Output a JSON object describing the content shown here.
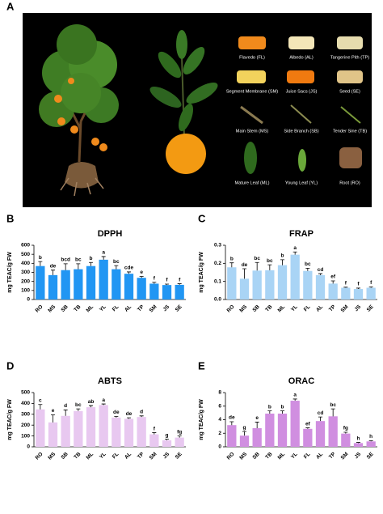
{
  "figure": {
    "panel_a_label": "A",
    "tissues": [
      "Flavedo (FL)",
      "Albedo (AL)",
      "Tangerine Pith (TP)",
      "Segment Membrane (SM)",
      "Juice Sacs (JS)",
      "Seed (SE)",
      "Main Stem (MS)",
      "Side Branch (SB)",
      "Tender Sine (TB)",
      "Mature Leaf (ML)",
      "Young Leaf (YL)",
      "Root (RO)"
    ]
  },
  "chart_data": [
    {
      "type": "bar",
      "panel_label": "B",
      "title": "DPPH",
      "y_label": "mg TEAC/g FW",
      "color": "#2196f3",
      "categories": [
        "RO",
        "MS",
        "SB",
        "TB",
        "ML",
        "YL",
        "FL",
        "AL",
        "TP",
        "SM",
        "JS",
        "SE"
      ],
      "values": [
        370,
        270,
        325,
        335,
        370,
        440,
        335,
        285,
        240,
        175,
        160,
        162
      ],
      "errors": [
        50,
        55,
        70,
        60,
        40,
        35,
        40,
        20,
        15,
        15,
        10,
        12
      ],
      "significance_letters": [
        "b",
        "de",
        "bcd",
        "bc",
        "b",
        "a",
        "bc",
        "cde",
        "e",
        "f",
        "f",
        "f"
      ],
      "ylim": [
        0,
        600
      ],
      "yticks": [
        0,
        100,
        200,
        300,
        400,
        500,
        600
      ]
    },
    {
      "type": "bar",
      "panel_label": "C",
      "title": "FRAP",
      "y_label": "mg TEAC/g FW",
      "color": "#a9d4f5",
      "categories": [
        "RO",
        "MS",
        "SB",
        "TB",
        "ML",
        "YL",
        "FL",
        "AL",
        "TP",
        "SM",
        "JS",
        "SE"
      ],
      "values": [
        0.178,
        0.115,
        0.16,
        0.162,
        0.19,
        0.248,
        0.158,
        0.135,
        0.088,
        0.065,
        0.058,
        0.065
      ],
      "errors": [
        0.025,
        0.055,
        0.045,
        0.03,
        0.03,
        0.015,
        0.015,
        0.008,
        0.015,
        0.003,
        0.005,
        0.005
      ],
      "significance_letters": [
        "b",
        "de",
        "bc",
        "bc",
        "b",
        "a",
        "bc",
        "cd",
        "ef",
        "f",
        "f",
        "f"
      ],
      "ylim": [
        0,
        0.3
      ],
      "yticks": [
        {
          "value": 0,
          "label": "0.0"
        },
        0.1,
        0.2,
        0.3
      ]
    },
    {
      "type": "bar",
      "panel_label": "D",
      "title": "ABTS",
      "y_label": "mg TEAC/g FW",
      "color": "#e8c8f0",
      "categories": [
        "RO",
        "MS",
        "SB",
        "TB",
        "ML",
        "YL",
        "FL",
        "AL",
        "TP",
        "SM",
        "JS",
        "SE"
      ],
      "values": [
        345,
        225,
        285,
        330,
        365,
        385,
        270,
        258,
        275,
        115,
        60,
        85
      ],
      "errors": [
        45,
        70,
        55,
        20,
        15,
        10,
        10,
        10,
        10,
        15,
        10,
        15
      ],
      "significance_letters": [
        "c",
        "e",
        "d",
        "bc",
        "ab",
        "a",
        "de",
        "de",
        "d",
        "f",
        "g",
        "fg"
      ],
      "ylim": [
        0,
        500
      ],
      "yticks": [
        0,
        100,
        200,
        300,
        400,
        500
      ]
    },
    {
      "type": "bar",
      "panel_label": "E",
      "title": "ORAC",
      "y_label": "mg TEAC/g FW",
      "color": "#d08ee0",
      "categories": [
        "RO",
        "MS",
        "SB",
        "TB",
        "ML",
        "YL",
        "FL",
        "AL",
        "TP",
        "SM",
        "JS",
        "SE"
      ],
      "values": [
        3.2,
        1.65,
        2.75,
        4.9,
        4.9,
        6.8,
        2.65,
        3.8,
        4.5,
        1.95,
        0.55,
        0.8
      ],
      "errors": [
        0.5,
        0.6,
        0.9,
        0.4,
        0.4,
        0.25,
        0.15,
        0.6,
        1.1,
        0.2,
        0.1,
        0.1
      ],
      "significance_letters": [
        "de",
        "g",
        "e",
        "b",
        "b",
        "a",
        "ef",
        "cd",
        "bc",
        "fg",
        "h",
        "h"
      ],
      "ylim": [
        0,
        8
      ],
      "yticks": [
        0,
        2,
        4,
        6,
        8
      ]
    }
  ]
}
